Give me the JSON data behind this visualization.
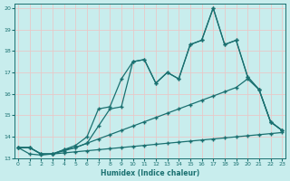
{
  "xlabel": "Humidex (Indice chaleur)",
  "background_color": "#c8eded",
  "grid_color": "#e8c8c8",
  "line_color": "#1a7070",
  "ylim": [
    13.0,
    20.2
  ],
  "xlim": [
    -0.3,
    23.3
  ],
  "yticks": [
    13,
    14,
    15,
    16,
    17,
    18,
    19,
    20
  ],
  "xticks": [
    0,
    1,
    2,
    3,
    4,
    5,
    6,
    7,
    8,
    9,
    10,
    11,
    12,
    13,
    14,
    15,
    16,
    17,
    18,
    19,
    20,
    21,
    22,
    23
  ],
  "series1_y": [
    13.5,
    13.5,
    13.2,
    13.2,
    13.4,
    13.6,
    14.0,
    15.3,
    15.4,
    16.7,
    17.5,
    17.6,
    16.5,
    17.0,
    16.7,
    18.3,
    18.5,
    20.0,
    18.3,
    18.5,
    16.8,
    16.2,
    14.7,
    14.3
  ],
  "series2_y": [
    13.5,
    13.5,
    13.2,
    13.2,
    13.4,
    13.5,
    13.7,
    14.5,
    15.3,
    15.4,
    17.5,
    17.6,
    16.5,
    17.0,
    16.7,
    18.3,
    18.5,
    20.0,
    18.3,
    18.5,
    16.8,
    16.2,
    14.7,
    14.3
  ],
  "series3_y": [
    13.5,
    13.5,
    13.2,
    13.2,
    13.35,
    13.5,
    13.7,
    13.9,
    14.1,
    14.3,
    14.5,
    14.7,
    14.9,
    15.1,
    15.3,
    15.5,
    15.7,
    15.9,
    16.1,
    16.3,
    16.7,
    16.2,
    14.7,
    14.3
  ],
  "series4_y": [
    13.5,
    13.2,
    13.15,
    13.2,
    13.25,
    13.3,
    13.35,
    13.4,
    13.45,
    13.5,
    13.55,
    13.6,
    13.65,
    13.7,
    13.75,
    13.8,
    13.85,
    13.9,
    13.95,
    14.0,
    14.05,
    14.1,
    14.15,
    14.2
  ]
}
